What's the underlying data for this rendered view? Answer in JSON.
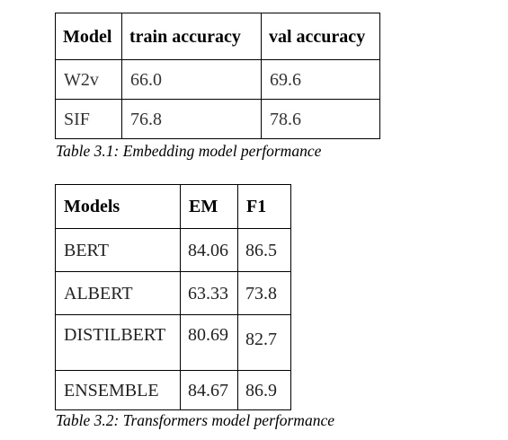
{
  "table1": {
    "headers": [
      "Model",
      "train accuracy",
      "val accuracy"
    ],
    "rows": [
      [
        "W2v",
        "66.0",
        "69.6"
      ],
      [
        "SIF",
        "76.8",
        "78.6"
      ]
    ],
    "caption": "Table 3.1: Embedding model performance"
  },
  "table2": {
    "headers": [
      "Models",
      "EM",
      "F1"
    ],
    "rows": [
      [
        "BERT",
        "84.06",
        "86.5"
      ],
      [
        "ALBERT",
        "63.33",
        "73.8"
      ],
      [
        "DISTILBERT",
        "80.69",
        "82.7"
      ],
      [
        "ENSEMBLE",
        "84.67",
        "86.9"
      ]
    ],
    "caption": "Table 3.2: Transformers model performance"
  }
}
